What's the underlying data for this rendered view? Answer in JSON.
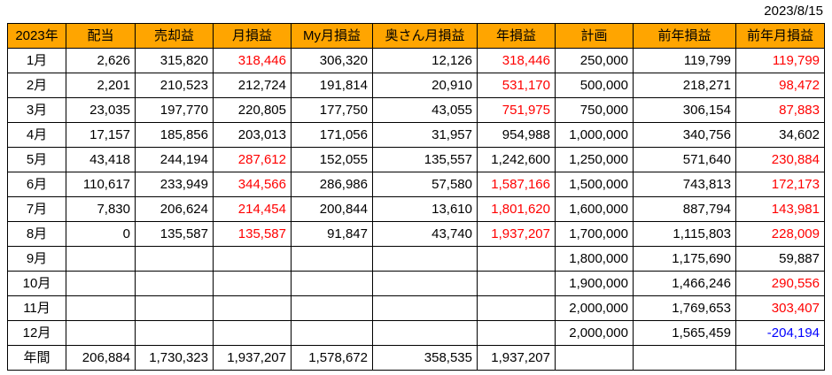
{
  "date": "2023/8/15",
  "colors": {
    "header_bg": "#FFA500",
    "negative_red": "#FF0000",
    "negative_blue": "#0000FF",
    "border": "#000000"
  },
  "table": {
    "headers": [
      "2023年",
      "配当",
      "売却益",
      "月損益",
      "My月損益",
      "奥さん月損益",
      "年損益",
      "計画",
      "前年損益",
      "前年月損益"
    ],
    "rows": [
      {
        "label": "1月",
        "values": [
          "2,626",
          "315,820",
          "318,446",
          "306,320",
          "12,126",
          "318,446",
          "250,000",
          "119,799",
          "119,799"
        ],
        "styles": [
          "",
          "",
          "r",
          "",
          "",
          "r",
          "",
          "",
          "r"
        ]
      },
      {
        "label": "2月",
        "values": [
          "2,201",
          "210,523",
          "212,724",
          "191,814",
          "20,910",
          "531,170",
          "500,000",
          "218,271",
          "98,472"
        ],
        "styles": [
          "",
          "",
          "",
          "",
          "",
          "r",
          "",
          "",
          "r"
        ]
      },
      {
        "label": "3月",
        "values": [
          "23,035",
          "197,770",
          "220,805",
          "177,750",
          "43,055",
          "751,975",
          "750,000",
          "306,154",
          "87,883"
        ],
        "styles": [
          "",
          "",
          "",
          "",
          "",
          "r",
          "",
          "",
          "r"
        ]
      },
      {
        "label": "4月",
        "values": [
          "17,157",
          "185,856",
          "203,013",
          "171,056",
          "31,957",
          "954,988",
          "1,000,000",
          "340,756",
          "34,602"
        ],
        "styles": [
          "",
          "",
          "",
          "",
          "",
          "",
          "",
          "",
          ""
        ]
      },
      {
        "label": "5月",
        "values": [
          "43,418",
          "244,194",
          "287,612",
          "152,055",
          "135,557",
          "1,242,600",
          "1,250,000",
          "571,640",
          "230,884"
        ],
        "styles": [
          "",
          "",
          "r",
          "",
          "",
          "",
          "",
          "",
          "r"
        ]
      },
      {
        "label": "6月",
        "values": [
          "110,617",
          "233,949",
          "344,566",
          "286,986",
          "57,580",
          "1,587,166",
          "1,500,000",
          "743,813",
          "172,173"
        ],
        "styles": [
          "",
          "",
          "r",
          "",
          "",
          "r",
          "",
          "",
          "r"
        ]
      },
      {
        "label": "7月",
        "values": [
          "7,830",
          "206,624",
          "214,454",
          "200,844",
          "13,610",
          "1,801,620",
          "1,600,000",
          "887,794",
          "143,981"
        ],
        "styles": [
          "",
          "",
          "r",
          "",
          "",
          "r",
          "",
          "",
          "r"
        ]
      },
      {
        "label": "8月",
        "values": [
          "0",
          "135,587",
          "135,587",
          "91,847",
          "43,740",
          "1,937,207",
          "1,700,000",
          "1,115,803",
          "228,009"
        ],
        "styles": [
          "",
          "",
          "r",
          "",
          "",
          "r",
          "",
          "",
          "r"
        ]
      },
      {
        "label": "9月",
        "values": [
          "",
          "",
          "",
          "",
          "",
          "",
          "1,800,000",
          "1,175,690",
          "59,887"
        ],
        "styles": [
          "",
          "",
          "",
          "",
          "",
          "",
          "",
          "",
          ""
        ]
      },
      {
        "label": "10月",
        "values": [
          "",
          "",
          "",
          "",
          "",
          "",
          "1,900,000",
          "1,466,246",
          "290,556"
        ],
        "styles": [
          "",
          "",
          "",
          "",
          "",
          "",
          "",
          "",
          "r"
        ]
      },
      {
        "label": "11月",
        "values": [
          "",
          "",
          "",
          "",
          "",
          "",
          "2,000,000",
          "1,769,653",
          "303,407"
        ],
        "styles": [
          "",
          "",
          "",
          "",
          "",
          "",
          "",
          "",
          "r"
        ]
      },
      {
        "label": "12月",
        "values": [
          "",
          "",
          "",
          "",
          "",
          "",
          "2,000,000",
          "1,565,459",
          "-204,194"
        ],
        "styles": [
          "",
          "",
          "",
          "",
          "",
          "",
          "",
          "",
          "b"
        ]
      },
      {
        "label": "年間",
        "values": [
          "206,884",
          "1,730,323",
          "1,937,207",
          "1,578,672",
          "358,535",
          "1,937,207",
          "",
          "",
          ""
        ],
        "styles": [
          "",
          "",
          "",
          "",
          "",
          "",
          "",
          "",
          ""
        ]
      }
    ]
  }
}
